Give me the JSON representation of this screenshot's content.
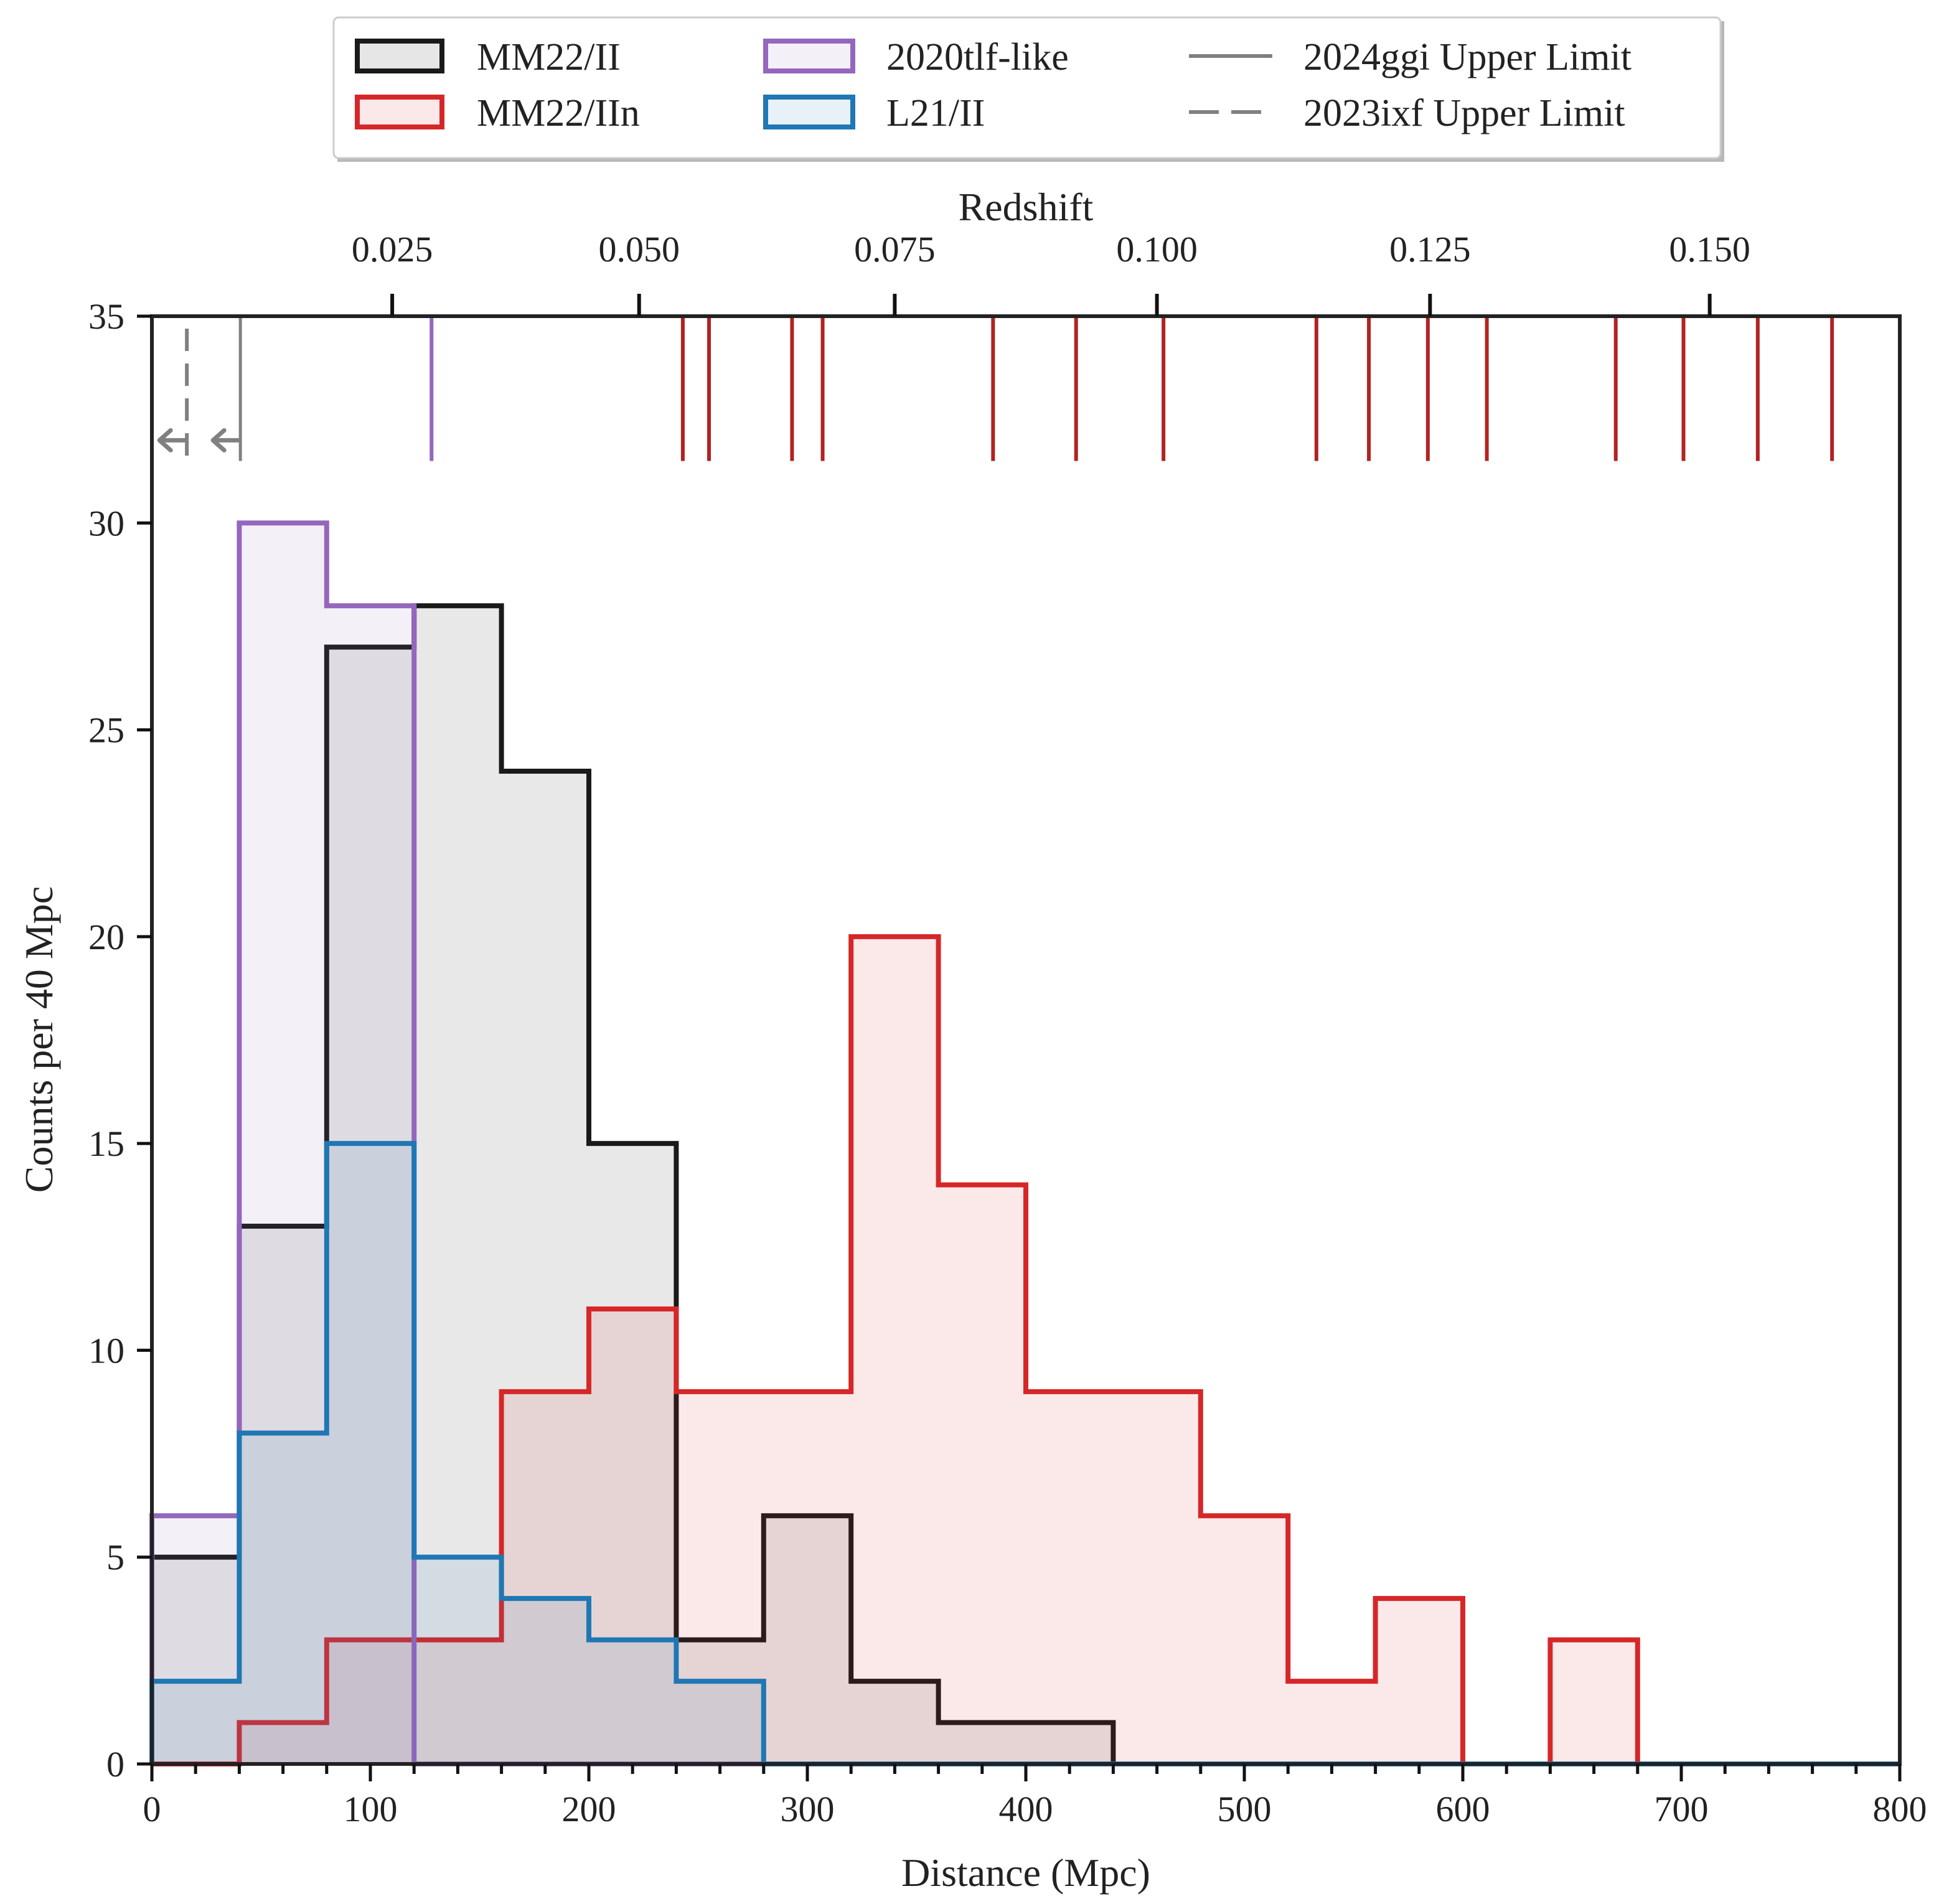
{
  "chart_data": {
    "type": "histogram-step",
    "xlabel": "Distance (Mpc)",
    "ylabel": "Counts per 40 Mpc",
    "top_xlabel": "Redshift",
    "xlim": [
      0,
      800
    ],
    "ylim": [
      0,
      35
    ],
    "bin_width": 40,
    "xticks": [
      0,
      100,
      200,
      300,
      400,
      500,
      600,
      700,
      800
    ],
    "yticks": [
      0,
      5,
      10,
      15,
      20,
      25,
      30,
      35
    ],
    "redshift_ticks": [
      {
        "label": "0.025",
        "distance": 110
      },
      {
        "label": "0.050",
        "distance": 223
      },
      {
        "label": "0.075",
        "distance": 340
      },
      {
        "label": "0.100",
        "distance": 460
      },
      {
        "label": "0.125",
        "distance": 585
      },
      {
        "label": "0.150",
        "distance": 713
      }
    ],
    "series": [
      {
        "name": "MM22/II",
        "color": "#1a1a1a",
        "fill": "#d9d9d9",
        "fill_opacity": 0.6,
        "values": [
          5,
          13,
          27,
          28,
          24,
          15,
          3,
          6,
          2,
          1,
          1,
          0,
          0,
          0,
          0,
          0,
          0,
          0,
          0,
          0
        ]
      },
      {
        "name": "MM22/IIn",
        "color": "#d62728",
        "fill": "#d62728",
        "fill_opacity": 0.1,
        "values": [
          0,
          1,
          3,
          3,
          9,
          11,
          9,
          9,
          20,
          14,
          9,
          9,
          6,
          2,
          4,
          0,
          3,
          0,
          0,
          0
        ]
      },
      {
        "name": "2020tlf-like",
        "color": "#9467bd",
        "fill": "#9467bd",
        "fill_opacity": 0.1,
        "values": [
          6,
          30,
          28,
          0,
          0,
          0,
          0,
          0,
          0,
          0,
          0,
          0,
          0,
          0,
          0,
          0,
          0,
          0,
          0,
          0
        ]
      },
      {
        "name": "L21/II",
        "color": "#1f77b4",
        "fill": "#1f77b4",
        "fill_opacity": 0.1,
        "values": [
          2,
          8,
          15,
          5,
          4,
          3,
          2,
          0,
          0,
          0,
          0,
          0,
          0,
          0,
          0,
          0,
          0,
          0,
          0,
          0
        ]
      }
    ],
    "event_markers": {
      "iin_color": "#b22222",
      "iin_distances": [
        243,
        255,
        293,
        307,
        385,
        423,
        463,
        533,
        557,
        584,
        611,
        670,
        701,
        735,
        769
      ],
      "tlf_color": "#9467bd",
      "tlf_distance": 128
    },
    "upper_limits": [
      {
        "name": "2024ggi Upper Limit",
        "distance": 40.5,
        "style": "solid",
        "color": "#808080"
      },
      {
        "name": "2023ixf Upper Limit",
        "distance": 16,
        "style": "dashed",
        "color": "#808080"
      }
    ],
    "legend_position": "top-outside"
  }
}
